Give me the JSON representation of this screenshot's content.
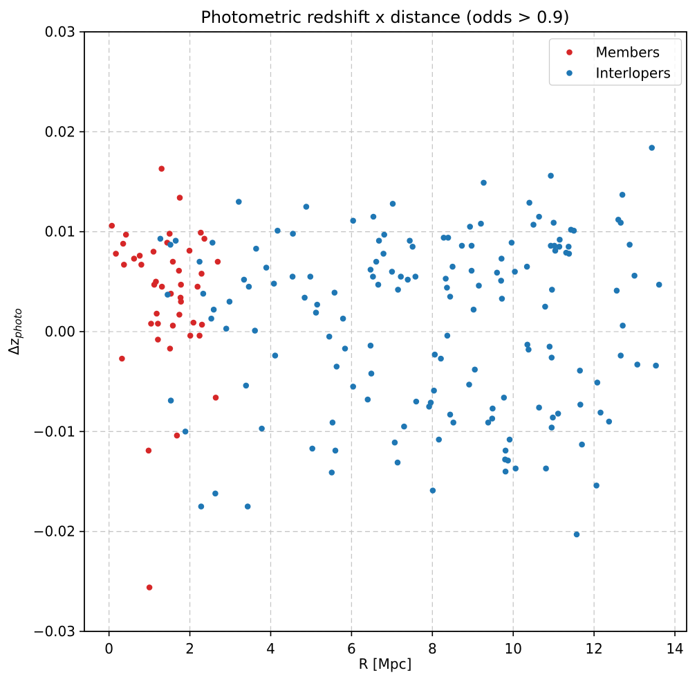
{
  "figure": {
    "ylabel_main": "Δz",
    "ylabel_sub": "photo"
  },
  "chart_data": {
    "type": "scatter",
    "title": "Photometric redshift x distance (odds > 0.9)",
    "xlabel": "R [Mpc]",
    "ylabel": "Δz_photo",
    "xlim": [
      -0.61,
      14.29
    ],
    "ylim": [
      -0.03,
      0.03
    ],
    "xticks": [
      0,
      2,
      4,
      6,
      8,
      10,
      12,
      14
    ],
    "xtick_labels": [
      "0",
      "2",
      "4",
      "6",
      "8",
      "10",
      "12",
      "14"
    ],
    "yticks": [
      -0.03,
      -0.02,
      -0.01,
      0.0,
      0.01,
      0.02,
      0.03
    ],
    "ytick_labels": [
      "−0.03",
      "−0.02",
      "−0.01",
      "0.00",
      "0.01",
      "0.02",
      "0.03"
    ],
    "grid": "dashed",
    "grid_color": "#c6c6c6",
    "legend": {
      "position": "upper right"
    },
    "marker_radius": 4.3,
    "series": [
      {
        "name": "Members",
        "color": "#d62728",
        "points": [
          [
            0.07,
            0.0106
          ],
          [
            1.3,
            0.0163
          ],
          [
            1.75,
            0.0134
          ],
          [
            0.42,
            0.0097
          ],
          [
            1.5,
            0.0098
          ],
          [
            2.27,
            0.0099
          ],
          [
            2.36,
            0.0093
          ],
          [
            0.35,
            0.0088
          ],
          [
            1.44,
            0.0089
          ],
          [
            0.17,
            0.0078
          ],
          [
            1.1,
            0.008
          ],
          [
            1.99,
            0.0081
          ],
          [
            0.62,
            0.0073
          ],
          [
            0.76,
            0.0076
          ],
          [
            0.37,
            0.0067
          ],
          [
            0.8,
            0.0067
          ],
          [
            1.58,
            0.007
          ],
          [
            2.69,
            0.007
          ],
          [
            1.73,
            0.0061
          ],
          [
            2.29,
            0.0058
          ],
          [
            1.12,
            0.0047
          ],
          [
            1.16,
            0.005
          ],
          [
            1.31,
            0.0045
          ],
          [
            1.78,
            0.0047
          ],
          [
            2.19,
            0.0045
          ],
          [
            1.53,
            0.0038
          ],
          [
            1.77,
            0.0034
          ],
          [
            1.78,
            0.003
          ],
          [
            1.18,
            0.0018
          ],
          [
            1.74,
            0.0017
          ],
          [
            1.04,
            0.0008
          ],
          [
            1.21,
            0.0008
          ],
          [
            1.58,
            0.0006
          ],
          [
            2.09,
            0.0009
          ],
          [
            2.3,
            0.0007
          ],
          [
            2.01,
            -0.0004
          ],
          [
            2.24,
            -0.0004
          ],
          [
            1.21,
            -0.0008
          ],
          [
            1.51,
            -0.0017
          ],
          [
            0.32,
            -0.0027
          ],
          [
            2.64,
            -0.0066
          ],
          [
            1.68,
            -0.0104
          ],
          [
            0.98,
            -0.0119
          ],
          [
            1.0,
            -0.0256
          ]
        ]
      },
      {
        "name": "Interlopers",
        "color": "#1f77b4",
        "points": [
          [
            3.21,
            0.013
          ],
          [
            4.17,
            0.0101
          ],
          [
            4.88,
            0.0125
          ],
          [
            7.02,
            0.0128
          ],
          [
            6.54,
            0.0115
          ],
          [
            6.04,
            0.0111
          ],
          [
            8.93,
            0.0105
          ],
          [
            13.43,
            0.0184
          ],
          [
            9.27,
            0.0149
          ],
          [
            10.93,
            0.0156
          ],
          [
            12.7,
            0.0137
          ],
          [
            10.4,
            0.0129
          ],
          [
            10.64,
            0.0115
          ],
          [
            10.5,
            0.0107
          ],
          [
            11.0,
            0.0109
          ],
          [
            12.6,
            0.0112
          ],
          [
            12.66,
            0.0109
          ],
          [
            9.2,
            0.0108
          ],
          [
            11.43,
            0.0102
          ],
          [
            11.5,
            0.0101
          ],
          [
            1.27,
            0.0093
          ],
          [
            1.65,
            0.0091
          ],
          [
            1.52,
            0.0087
          ],
          [
            2.56,
            0.0089
          ],
          [
            3.64,
            0.0083
          ],
          [
            2.24,
            0.007
          ],
          [
            3.89,
            0.0064
          ],
          [
            3.34,
            0.0052
          ],
          [
            3.46,
            0.0045
          ],
          [
            4.08,
            0.0048
          ],
          [
            1.45,
            0.0037
          ],
          [
            2.33,
            0.0038
          ],
          [
            2.98,
            0.003
          ],
          [
            2.59,
            0.0022
          ],
          [
            2.53,
            0.0013
          ],
          [
            2.9,
            0.0003
          ],
          [
            3.61,
            0.0001
          ],
          [
            4.11,
            -0.0024
          ],
          [
            3.39,
            -0.0054
          ],
          [
            1.53,
            -0.0069
          ],
          [
            3.78,
            -0.0097
          ],
          [
            4.55,
            0.0098
          ],
          [
            6.81,
            0.0097
          ],
          [
            6.68,
            0.0091
          ],
          [
            7.44,
            0.0091
          ],
          [
            7.51,
            0.0085
          ],
          [
            6.79,
            0.0078
          ],
          [
            6.61,
            0.007
          ],
          [
            6.47,
            0.0062
          ],
          [
            6.53,
            0.0055
          ],
          [
            7.0,
            0.006
          ],
          [
            6.66,
            0.0047
          ],
          [
            7.22,
            0.0055
          ],
          [
            7.39,
            0.0052
          ],
          [
            7.58,
            0.0055
          ],
          [
            7.15,
            0.0042
          ],
          [
            4.54,
            0.0055
          ],
          [
            4.98,
            0.0055
          ],
          [
            5.58,
            0.0039
          ],
          [
            4.84,
            0.0034
          ],
          [
            5.15,
            0.0027
          ],
          [
            5.12,
            0.0019
          ],
          [
            5.79,
            0.0013
          ],
          [
            5.45,
            -0.0005
          ],
          [
            5.84,
            -0.0017
          ],
          [
            6.47,
            -0.0014
          ],
          [
            5.63,
            -0.0035
          ],
          [
            6.49,
            -0.0042
          ],
          [
            6.04,
            -0.0055
          ],
          [
            6.4,
            -0.0068
          ],
          [
            7.6,
            -0.007
          ],
          [
            7.92,
            -0.0075
          ],
          [
            7.96,
            -0.0071
          ],
          [
            5.53,
            -0.0091
          ],
          [
            7.3,
            -0.0095
          ],
          [
            8.04,
            -0.0059
          ],
          [
            8.37,
            -0.0004
          ],
          [
            8.06,
            -0.0023
          ],
          [
            8.21,
            -0.0027
          ],
          [
            8.44,
            -0.0083
          ],
          [
            8.52,
            -0.0091
          ],
          [
            9.05,
            -0.0038
          ],
          [
            8.91,
            -0.0053
          ],
          [
            8.28,
            0.0094
          ],
          [
            8.39,
            0.0094
          ],
          [
            8.73,
            0.0086
          ],
          [
            8.97,
            0.0086
          ],
          [
            8.5,
            0.0065
          ],
          [
            8.97,
            0.0061
          ],
          [
            8.33,
            0.0053
          ],
          [
            8.36,
            0.0044
          ],
          [
            8.44,
            0.0035
          ],
          [
            9.02,
            0.0022
          ],
          [
            9.15,
            0.0046
          ],
          [
            9.96,
            0.0089
          ],
          [
            11.15,
            0.0092
          ],
          [
            10.93,
            0.0086
          ],
          [
            11.02,
            0.0086
          ],
          [
            11.14,
            0.0085
          ],
          [
            11.04,
            0.0081
          ],
          [
            11.31,
            0.0079
          ],
          [
            11.38,
            0.0078
          ],
          [
            11.37,
            0.0085
          ],
          [
            9.71,
            0.0073
          ],
          [
            10.34,
            0.0065
          ],
          [
            10.04,
            0.006
          ],
          [
            9.6,
            0.0059
          ],
          [
            9.7,
            0.0051
          ],
          [
            10.96,
            0.0042
          ],
          [
            9.72,
            0.0033
          ],
          [
            10.79,
            0.0025
          ],
          [
            12.88,
            0.0087
          ],
          [
            13.0,
            0.0056
          ],
          [
            13.61,
            0.0047
          ],
          [
            12.56,
            0.0041
          ],
          [
            12.71,
            0.0006
          ],
          [
            10.35,
            -0.0013
          ],
          [
            10.38,
            -0.0018
          ],
          [
            10.9,
            -0.0015
          ],
          [
            10.95,
            -0.0026
          ],
          [
            12.66,
            -0.0024
          ],
          [
            11.65,
            -0.0039
          ],
          [
            13.07,
            -0.0033
          ],
          [
            13.53,
            -0.0034
          ],
          [
            12.08,
            -0.0051
          ],
          [
            9.77,
            -0.0066
          ],
          [
            9.49,
            -0.0077
          ],
          [
            10.64,
            -0.0076
          ],
          [
            11.66,
            -0.0073
          ],
          [
            11.11,
            -0.0082
          ],
          [
            10.98,
            -0.0086
          ],
          [
            9.48,
            -0.0087
          ],
          [
            9.38,
            -0.0091
          ],
          [
            12.16,
            -0.0081
          ],
          [
            12.37,
            -0.009
          ],
          [
            10.95,
            -0.0096
          ],
          [
            1.89,
            -0.01
          ],
          [
            2.63,
            -0.0162
          ],
          [
            2.28,
            -0.0175
          ],
          [
            3.43,
            -0.0175
          ],
          [
            5.03,
            -0.0117
          ],
          [
            5.6,
            -0.0119
          ],
          [
            5.51,
            -0.0141
          ],
          [
            7.07,
            -0.0111
          ],
          [
            7.14,
            -0.0131
          ],
          [
            8.01,
            -0.0159
          ],
          [
            8.16,
            -0.0108
          ],
          [
            9.91,
            -0.0108
          ],
          [
            9.81,
            -0.0119
          ],
          [
            9.8,
            -0.0128
          ],
          [
            9.87,
            -0.0129
          ],
          [
            9.81,
            -0.014
          ],
          [
            10.06,
            -0.0137
          ],
          [
            10.81,
            -0.0137
          ],
          [
            11.7,
            -0.0113
          ],
          [
            12.06,
            -0.0154
          ],
          [
            11.57,
            -0.0203
          ]
        ]
      }
    ]
  }
}
